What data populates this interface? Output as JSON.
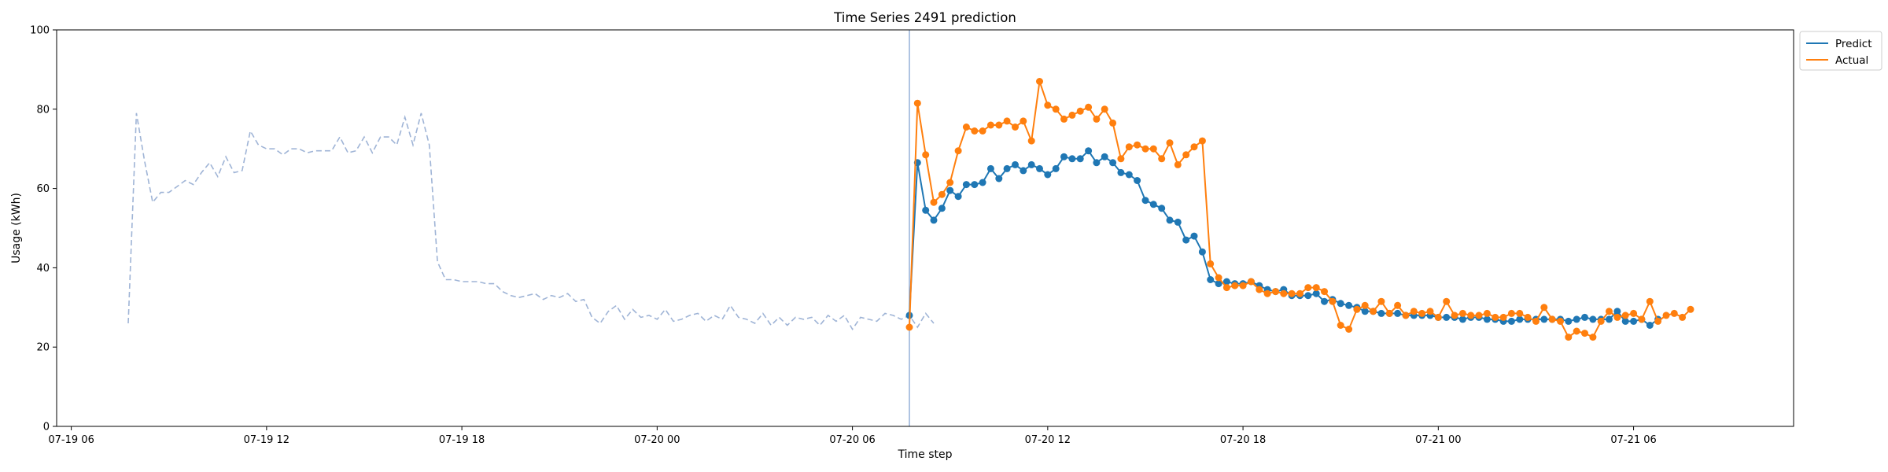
{
  "chart_data": {
    "type": "line",
    "title": "Time Series 2491 prediction",
    "xlabel": "Time step",
    "ylabel": "Usage (kWh)",
    "xlim": [
      "2024-07-19T05:33",
      "2024-07-21T10:55"
    ],
    "ylim": [
      0,
      100
    ],
    "yticks": [
      0,
      20,
      40,
      60,
      80,
      100
    ],
    "xticks": [
      {
        "t": "2024-07-19T06:00",
        "label": "07-19 06"
      },
      {
        "t": "2024-07-19T12:00",
        "label": "07-19 12"
      },
      {
        "t": "2024-07-19T18:00",
        "label": "07-19 18"
      },
      {
        "t": "2024-07-20T00:00",
        "label": "07-20 00"
      },
      {
        "t": "2024-07-20T06:00",
        "label": "07-20 06"
      },
      {
        "t": "2024-07-20T12:00",
        "label": "07-20 12"
      },
      {
        "t": "2024-07-20T18:00",
        "label": "07-20 18"
      },
      {
        "t": "2024-07-21T00:00",
        "label": "07-21 00"
      },
      {
        "t": "2024-07-21T06:00",
        "label": "07-21 06"
      }
    ],
    "grid": false,
    "legend_position": "upper-right-outside",
    "forecast_start": "2024-07-20T07:45",
    "history": {
      "start": "2024-07-19T07:45",
      "step_minutes": 15,
      "color": "#9fb4d6",
      "style": "dashed",
      "values": [
        26,
        79,
        67,
        56.5,
        59,
        59,
        60.5,
        62,
        61,
        64,
        66.5,
        63,
        68,
        64,
        64.5,
        74.5,
        71,
        70,
        70,
        68.5,
        70,
        70,
        69,
        69.5,
        69.5,
        69.5,
        73,
        69,
        69.5,
        73,
        69,
        73,
        73,
        71,
        78,
        71,
        79,
        71,
        41.5,
        37,
        37,
        36.5,
        36.5,
        36.5,
        36,
        36,
        34,
        33,
        32.5,
        33,
        33.5,
        32,
        33,
        32.5,
        33.5,
        31.5,
        32,
        27.5,
        26,
        29,
        30.5,
        27,
        29.5,
        27.5,
        28,
        27,
        29.5,
        26.5,
        27,
        28,
        28.5,
        26.5,
        28,
        27,
        30.5,
        27.5,
        27,
        26,
        28.5,
        25.5,
        27.5,
        25.5,
        27.5,
        27,
        27.5,
        25.5,
        28,
        26.5,
        28,
        24.5,
        27.5,
        27,
        26.5,
        28.5,
        28,
        27,
        28,
        25,
        28.5,
        26
      ]
    },
    "series": [
      {
        "name": "Predict",
        "color": "#1f77b4",
        "start": "2024-07-20T07:45",
        "step_minutes": 15,
        "values": [
          28,
          66.5,
          54.5,
          52,
          55,
          59.5,
          58,
          61,
          61,
          61.5,
          65,
          62.5,
          65,
          66,
          64.5,
          66,
          65,
          63.5,
          65,
          68,
          67.5,
          67.5,
          69.5,
          66.5,
          68,
          66.5,
          64,
          63.5,
          62,
          57,
          56,
          55,
          52,
          51.5,
          47,
          48,
          44,
          37,
          36,
          36.5,
          36,
          36,
          36.5,
          35.5,
          34.5,
          34,
          34.5,
          33,
          33,
          33,
          33.5,
          31.5,
          32,
          31,
          30.5,
          30,
          29,
          29,
          28.5,
          28.5,
          28.5,
          28,
          28,
          28,
          28,
          27.5,
          27.5,
          27.5,
          27,
          27.5,
          27.5,
          27,
          27,
          26.5,
          26.5,
          27,
          27,
          27,
          27,
          27,
          27,
          26.5,
          27,
          27.5,
          27,
          27,
          27,
          29,
          26.5,
          26.5,
          27,
          25.5,
          27
        ]
      },
      {
        "name": "Actual",
        "color": "#ff7f0e",
        "start": "2024-07-20T07:45",
        "step_minutes": 15,
        "values": [
          25,
          81.5,
          68.5,
          56.5,
          58.5,
          61.5,
          69.5,
          75.5,
          74.5,
          74.5,
          76,
          76,
          77,
          75.5,
          77,
          72,
          87,
          81,
          80,
          77.5,
          78.5,
          79.5,
          80.5,
          77.5,
          80,
          76.5,
          67.5,
          70.5,
          71,
          70,
          70,
          67.5,
          71.5,
          66,
          68.5,
          70.5,
          72,
          41,
          37.5,
          35,
          35.5,
          35.5,
          36.5,
          34.5,
          33.5,
          34,
          33.5,
          33.5,
          33.5,
          35,
          35,
          34,
          31.5,
          25.5,
          24.5,
          29.5,
          30.5,
          29,
          31.5,
          28.5,
          30.5,
          28,
          29,
          28.5,
          29,
          27.5,
          31.5,
          28,
          28.5,
          28,
          28,
          28.5,
          27.5,
          27.5,
          28.5,
          28.5,
          27.5,
          26.5,
          30,
          27,
          26.5,
          22.5,
          24,
          23.5,
          22.5,
          26.5,
          29,
          27.5,
          28,
          28.5,
          27,
          31.5,
          26.5,
          28,
          28.5,
          27.5,
          29.5
        ]
      }
    ]
  }
}
